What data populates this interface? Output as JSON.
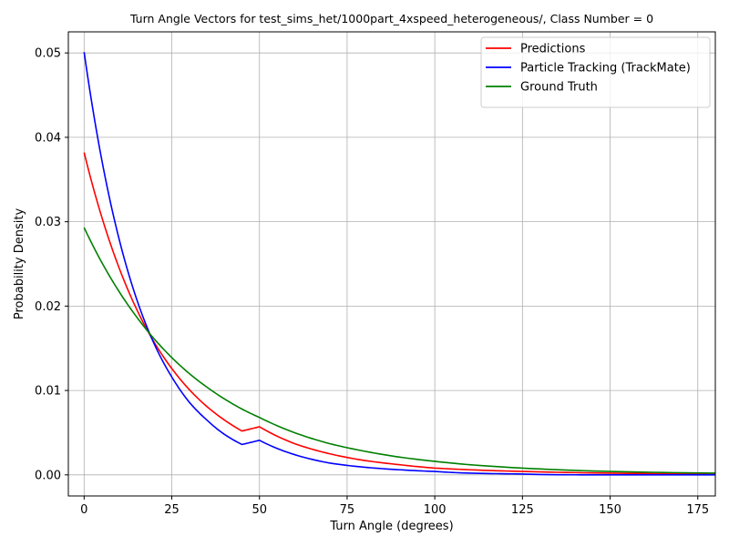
{
  "chart_data": {
    "type": "line",
    "title": "Turn Angle Vectors for test_sims_het/1000part_4xspeed_heterogeneous/, Class Number = 0",
    "xlabel": "Turn Angle (degrees)",
    "ylabel": "Probability Density",
    "xlim": [
      -4.5,
      180
    ],
    "ylim": [
      -0.0025,
      0.0525
    ],
    "xticks": [
      0,
      25,
      50,
      75,
      100,
      125,
      150,
      175
    ],
    "yticks": [
      0.0,
      0.01,
      0.02,
      0.03,
      0.04,
      0.05
    ],
    "ytick_labels": [
      "0.00",
      "0.01",
      "0.02",
      "0.03",
      "0.04",
      "0.05"
    ],
    "grid": true,
    "legend_position": "top-right",
    "series": [
      {
        "name": "Predictions",
        "color": "#ff0000",
        "x": [
          0,
          5,
          10,
          15,
          20,
          25,
          30,
          35,
          40,
          45,
          50,
          60,
          70,
          80,
          90,
          100,
          110,
          125,
          150,
          180
        ],
        "y": [
          0.0382,
          0.0306,
          0.0245,
          0.0196,
          0.0157,
          0.0126,
          0.0101,
          0.0081,
          0.0065,
          0.0052,
          0.0057,
          0.0037,
          0.0025,
          0.0017,
          0.0012,
          0.0008,
          0.0006,
          0.0004,
          0.0002,
          0.0001
        ]
      },
      {
        "name": "Particle Tracking (TrackMate)",
        "color": "#0000ff",
        "x": [
          0,
          5,
          10,
          15,
          20,
          25,
          30,
          35,
          40,
          45,
          50,
          60,
          70,
          80,
          90,
          100,
          110,
          125,
          150,
          180
        ],
        "y": [
          0.0501,
          0.0374,
          0.0279,
          0.0208,
          0.0155,
          0.0116,
          0.0086,
          0.0065,
          0.0048,
          0.0036,
          0.0041,
          0.0024,
          0.0014,
          0.0009,
          0.0006,
          0.0004,
          0.0002,
          0.0001,
          0.0,
          0.0
        ]
      },
      {
        "name": "Ground Truth",
        "color": "#008000",
        "x": [
          0,
          5,
          10,
          15,
          20,
          25,
          30,
          35,
          40,
          45,
          50,
          60,
          70,
          80,
          90,
          100,
          110,
          125,
          150,
          180
        ],
        "y": [
          0.0293,
          0.0252,
          0.0217,
          0.0187,
          0.0161,
          0.0139,
          0.012,
          0.0104,
          0.009,
          0.0078,
          0.0068,
          0.005,
          0.0037,
          0.0028,
          0.0021,
          0.0016,
          0.0012,
          0.0008,
          0.0004,
          0.0002
        ]
      }
    ]
  }
}
